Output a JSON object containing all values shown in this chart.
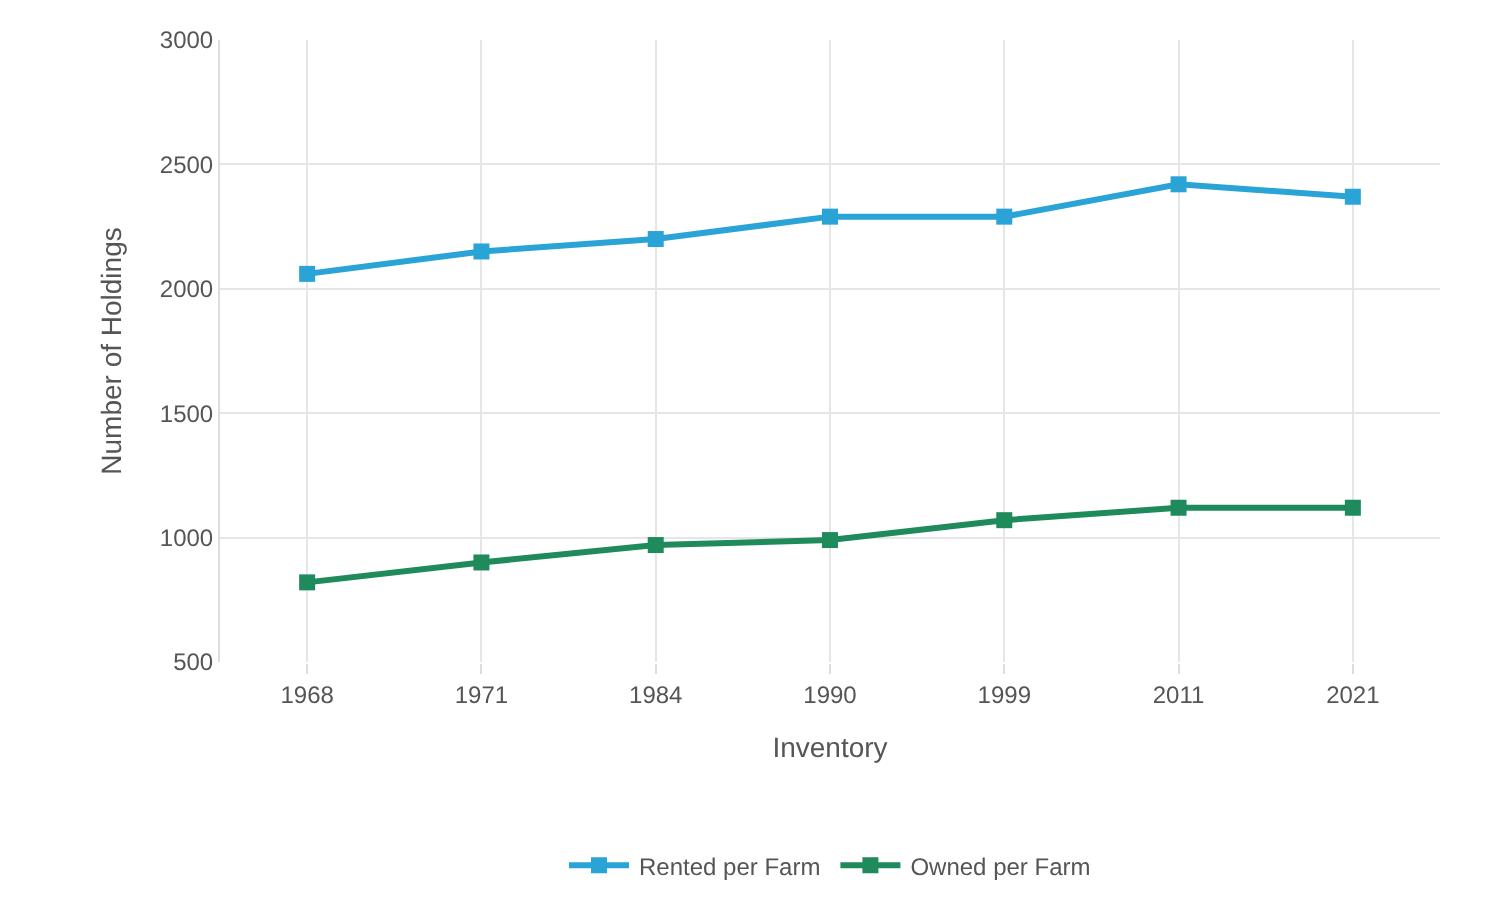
{
  "chart_data": {
    "type": "line",
    "xlabel": "Inventory",
    "ylabel": "Number of Holdings",
    "categories": [
      "1968",
      "1971",
      "1984",
      "1990",
      "1999",
      "2011",
      "2021"
    ],
    "series": [
      {
        "name": "Rented per Farm",
        "color": "#2aa3d6",
        "values": [
          2060,
          2150,
          2200,
          2290,
          2290,
          2420,
          2370
        ]
      },
      {
        "name": "Owned per Farm",
        "color": "#1f8a5c",
        "values": [
          820,
          900,
          970,
          990,
          1070,
          1120,
          1120
        ]
      }
    ],
    "ylim": [
      500,
      3000
    ],
    "yticks": [
      500,
      1000,
      1500,
      2000,
      2500,
      3000
    ],
    "grid": true,
    "legend": "bottom",
    "marker": "square",
    "line_style": "solid"
  }
}
